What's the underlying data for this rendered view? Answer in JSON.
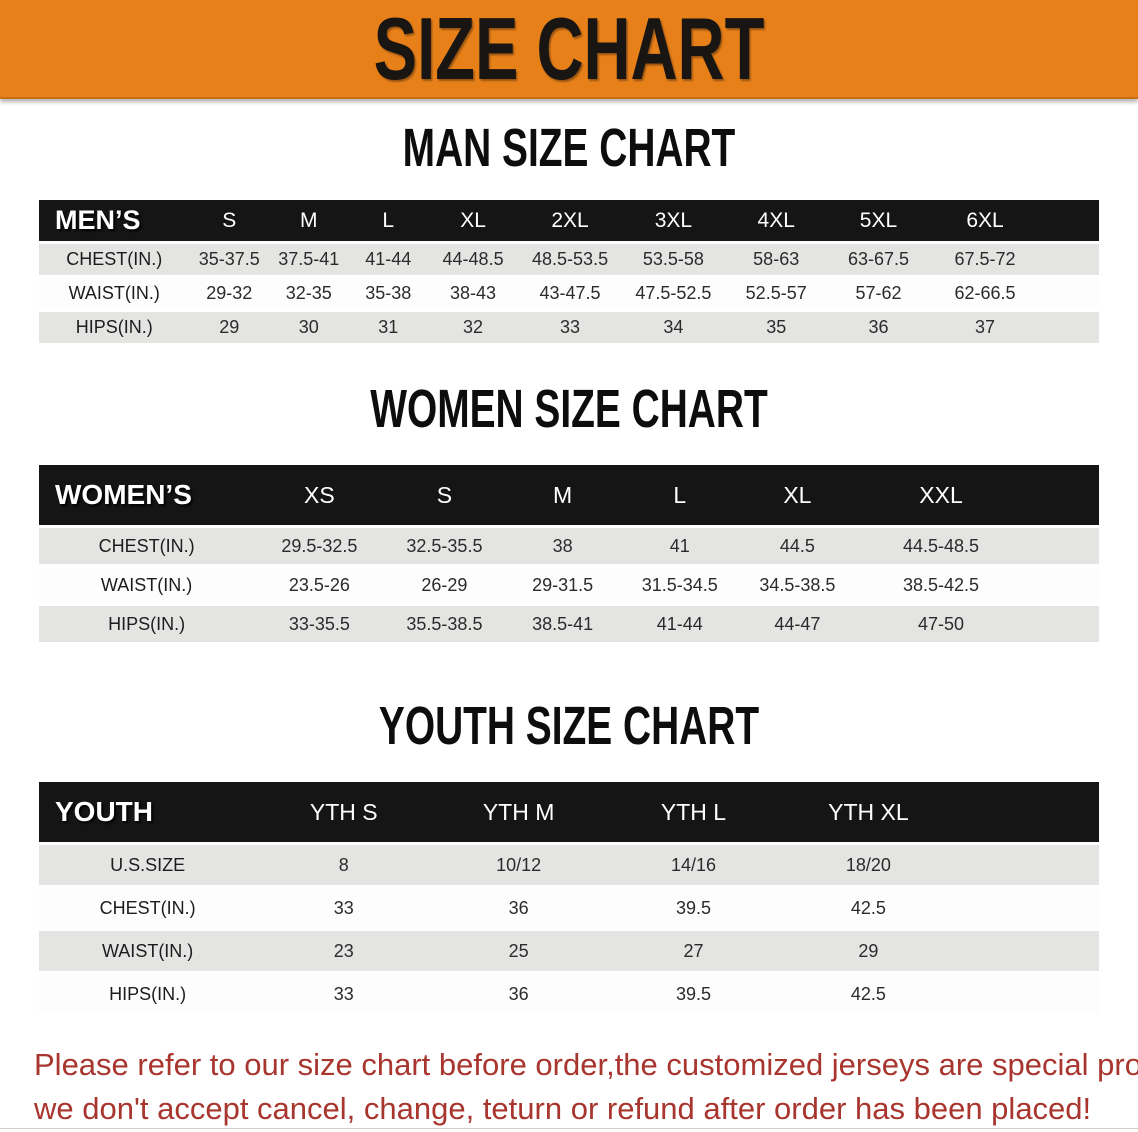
{
  "banner": {
    "title": "SIZE CHART"
  },
  "sections": [
    {
      "heading": "MAN SIZE CHART",
      "label": "MEN’S",
      "columns": [
        "S",
        "M",
        "L",
        "XL",
        "2XL",
        "3XL",
        "4XL",
        "5XL",
        "6XL"
      ],
      "rows": [
        {
          "label": "CHEST(IN.)",
          "values": [
            "35-37.5",
            "37.5-41",
            "41-44",
            "44-48.5",
            "48.5-53.5",
            "53.5-58",
            "58-63",
            "63-67.5",
            "67.5-72"
          ]
        },
        {
          "label": "WAIST(IN.)",
          "values": [
            "29-32",
            "32-35",
            "35-38",
            "38-43",
            "43-47.5",
            "47.5-52.5",
            "52.5-57",
            "57-62",
            "62-66.5"
          ]
        },
        {
          "label": "HIPS(IN.)",
          "values": [
            "29",
            "30",
            "31",
            "32",
            "33",
            "34",
            "35",
            "36",
            "37"
          ]
        }
      ]
    },
    {
      "heading": "WOMEN SIZE CHART",
      "label": "WOMEN’S",
      "columns": [
        "XS",
        "S",
        "M",
        "L",
        "XL",
        "XXL"
      ],
      "rows": [
        {
          "label": "CHEST(IN.)",
          "values": [
            "29.5-32.5",
            "32.5-35.5",
            "38",
            "41",
            "44.5",
            "44.5-48.5"
          ]
        },
        {
          "label": "WAIST(IN.)",
          "values": [
            "23.5-26",
            "26-29",
            "29-31.5",
            "31.5-34.5",
            "34.5-38.5",
            "38.5-42.5"
          ]
        },
        {
          "label": "HIPS(IN.)",
          "values": [
            "33-35.5",
            "35.5-38.5",
            "38.5-41",
            "41-44",
            "44-47",
            "47-50"
          ]
        }
      ]
    },
    {
      "heading": "YOUTH SIZE CHART",
      "label": "YOUTH",
      "columns": [
        "YTH S",
        "YTH M",
        "YTH L",
        "YTH XL"
      ],
      "rows": [
        {
          "label": "U.S.SIZE",
          "values": [
            "8",
            "10/12",
            "14/16",
            "18/20"
          ]
        },
        {
          "label": "CHEST(IN.)",
          "values": [
            "33",
            "36",
            "39.5",
            "42.5"
          ]
        },
        {
          "label": "WAIST(IN.)",
          "values": [
            "23",
            "25",
            "27",
            "29"
          ]
        },
        {
          "label": "HIPS(IN.)",
          "values": [
            "33",
            "36",
            "39.5",
            "42.5"
          ]
        }
      ]
    }
  ],
  "disclaimer": {
    "line1": "Please refer to our size chart before order,the customized jerseys are special products,",
    "line2": "we don't accept cancel, change, teturn or refund after order has been placed!"
  },
  "colors": {
    "banner_bg": "#E8801A",
    "header_bar": "#151515",
    "row_gray": "#E4E4E3",
    "disclaimer_red": "#A8352E"
  }
}
